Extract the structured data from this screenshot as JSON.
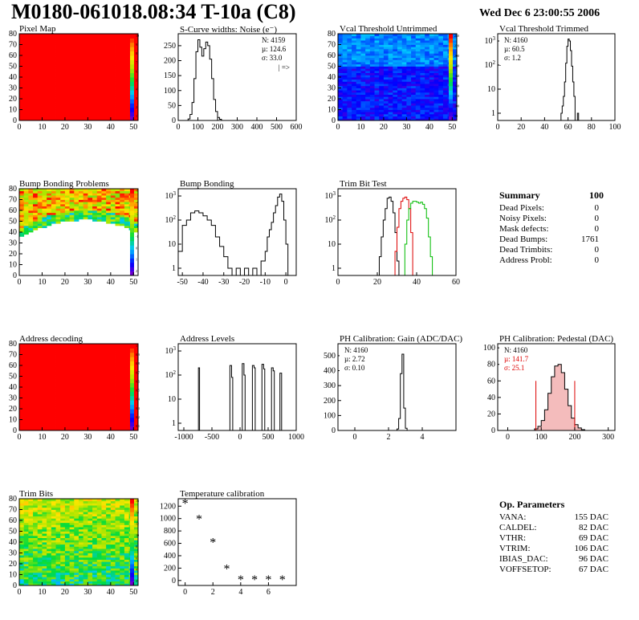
{
  "header": {
    "title": "M0180-061018.08:34 T-10a (C8)",
    "date": "Wed Dec  6 23:00:55 2006"
  },
  "chart_data": [
    {
      "id": "p1",
      "type": "heatmap",
      "title": "Pixel Map",
      "xlim": [
        0,
        52
      ],
      "ylim": [
        0,
        80
      ],
      "xticks": [
        0,
        10,
        20,
        30,
        40,
        50
      ],
      "yticks": [
        0,
        10,
        20,
        30,
        40,
        50,
        60,
        70,
        80
      ],
      "fill": "uniform-max",
      "zticks": [
        "1",
        "2",
        "3",
        "4",
        "5",
        "6",
        "7",
        "8",
        "9",
        "10"
      ]
    },
    {
      "id": "p2",
      "type": "histogram",
      "title": "S-Curve widths: Noise (e⁻)",
      "xlim": [
        0,
        600
      ],
      "ylim": [
        0,
        290
      ],
      "xticks": [
        0,
        100,
        200,
        300,
        400,
        500,
        600
      ],
      "yticks": [
        0,
        50,
        100,
        150,
        200,
        250
      ],
      "stats": [
        "N: 4159",
        "µ: 124.6",
        "σ: 33.0"
      ],
      "note": "| =>",
      "series": [
        {
          "color": "#000",
          "points": [
            [
              40,
              0
            ],
            [
              50,
              5
            ],
            [
              60,
              20
            ],
            [
              70,
              60
            ],
            [
              80,
              140
            ],
            [
              90,
              230
            ],
            [
              100,
              270
            ],
            [
              110,
              245
            ],
            [
              120,
              215
            ],
            [
              130,
              240
            ],
            [
              140,
              262
            ],
            [
              150,
              250
            ],
            [
              160,
              205
            ],
            [
              170,
              140
            ],
            [
              180,
              70
            ],
            [
              190,
              30
            ],
            [
              200,
              10
            ],
            [
              210,
              4
            ],
            [
              220,
              0
            ]
          ]
        }
      ]
    },
    {
      "id": "p3",
      "type": "heatmap",
      "title": "Vcal Threshold Untrimmed",
      "xlim": [
        0,
        52
      ],
      "ylim": [
        0,
        80
      ],
      "xticks": [
        0,
        10,
        20,
        30,
        40,
        50
      ],
      "yticks": [
        0,
        10,
        20,
        30,
        40,
        50,
        60,
        70,
        80
      ],
      "fill": "gradient-blue",
      "zticks": [
        "80",
        "100",
        "120",
        "140",
        "160",
        "180",
        "200",
        "220",
        "240"
      ]
    },
    {
      "id": "p4",
      "type": "histogram",
      "title": "Vcal Threshold Trimmed",
      "xlim": [
        0,
        100
      ],
      "log": true,
      "xticks": [
        0,
        20,
        40,
        60,
        80,
        100
      ],
      "yticks": [
        1,
        10,
        100,
        1000
      ],
      "stats": [
        "N: 4160",
        "µ: 60.5",
        "σ:  1.2"
      ],
      "series": [
        {
          "color": "#000",
          "points": [
            [
              52,
              0
            ],
            [
              54,
              1
            ],
            [
              55,
              2
            ],
            [
              56,
              5
            ],
            [
              57,
              20
            ],
            [
              58,
              120
            ],
            [
              59,
              600
            ],
            [
              60,
              1200
            ],
            [
              61,
              1000
            ],
            [
              62,
              400
            ],
            [
              63,
              90
            ],
            [
              64,
              20
            ],
            [
              65,
              5
            ],
            [
              66,
              0
            ],
            [
              68,
              1
            ],
            [
              69,
              0
            ]
          ]
        }
      ]
    },
    {
      "id": "p5",
      "type": "heatmap",
      "title": "Bump Bonding Problems",
      "xlim": [
        0,
        52
      ],
      "ylim": [
        0,
        80
      ],
      "xticks": [
        0,
        10,
        20,
        30,
        40,
        50
      ],
      "yticks": [
        0,
        10,
        20,
        30,
        40,
        50,
        60,
        70,
        80
      ],
      "fill": "bump",
      "zticks": [
        "2",
        "1",
        "0",
        "-1",
        "-2",
        "-3",
        "-4",
        "-5"
      ]
    },
    {
      "id": "p6",
      "type": "histogram",
      "title": "Bump Bonding",
      "xlim": [
        -52,
        5
      ],
      "log": true,
      "xticks": [
        -50,
        -40,
        -30,
        -20,
        -10,
        0
      ],
      "yticks": [
        1,
        10,
        100,
        1000
      ],
      "series": [
        {
          "color": "#000",
          "points": [
            [
              -52,
              5
            ],
            [
              -50,
              60
            ],
            [
              -48,
              100
            ],
            [
              -46,
              200
            ],
            [
              -44,
              240
            ],
            [
              -42,
              200
            ],
            [
              -40,
              150
            ],
            [
              -38,
              100
            ],
            [
              -36,
              60
            ],
            [
              -34,
              20
            ],
            [
              -32,
              8
            ],
            [
              -30,
              3
            ],
            [
              -28,
              1
            ],
            [
              -26,
              0
            ],
            [
              -24,
              1
            ],
            [
              -22,
              0
            ],
            [
              -20,
              1
            ],
            [
              -18,
              0
            ],
            [
              -16,
              1
            ],
            [
              -14,
              0
            ],
            [
              -12,
              2
            ],
            [
              -10,
              5
            ],
            [
              -9,
              20
            ],
            [
              -8,
              40
            ],
            [
              -7,
              80
            ],
            [
              -6,
              200
            ],
            [
              -5,
              400
            ],
            [
              -4,
              900
            ],
            [
              -3,
              1200
            ],
            [
              -2,
              600
            ],
            [
              -1,
              100
            ],
            [
              0,
              10
            ],
            [
              1,
              0
            ]
          ]
        }
      ]
    },
    {
      "id": "p7",
      "type": "histogram",
      "title": "Trim Bit Test",
      "xlim": [
        0,
        60
      ],
      "log": true,
      "xticks": [
        0,
        20,
        40,
        60
      ],
      "yticks": [
        1,
        10,
        100,
        1000
      ],
      "series": [
        {
          "color": "#000",
          "points": [
            [
              20,
              0
            ],
            [
              21,
              3
            ],
            [
              22,
              20
            ],
            [
              23,
              100
            ],
            [
              24,
              300
            ],
            [
              25,
              800
            ],
            [
              26,
              900
            ],
            [
              27,
              600
            ],
            [
              28,
              200
            ],
            [
              29,
              30
            ],
            [
              30,
              2
            ],
            [
              31,
              0
            ]
          ]
        },
        {
          "color": "#d00",
          "points": [
            [
              28,
              0
            ],
            [
              29,
              5
            ],
            [
              30,
              50
            ],
            [
              31,
              300
            ],
            [
              32,
              600
            ],
            [
              33,
              800
            ],
            [
              34,
              900
            ],
            [
              35,
              700
            ],
            [
              36,
              300
            ],
            [
              37,
              30
            ],
            [
              38,
              0
            ]
          ]
        },
        {
          "color": "#0b0",
          "points": [
            [
              33,
              0
            ],
            [
              34,
              10
            ],
            [
              35,
              100
            ],
            [
              36,
              300
            ],
            [
              37,
              500
            ],
            [
              38,
              600
            ],
            [
              39,
              600
            ],
            [
              40,
              550
            ],
            [
              41,
              500
            ],
            [
              42,
              550
            ],
            [
              43,
              450
            ],
            [
              44,
              300
            ],
            [
              45,
              120
            ],
            [
              46,
              20
            ],
            [
              47,
              3
            ],
            [
              48,
              0
            ]
          ]
        }
      ]
    },
    {
      "id": "p9",
      "type": "heatmap",
      "title": "Address decoding",
      "xlim": [
        0,
        52
      ],
      "ylim": [
        0,
        80
      ],
      "xticks": [
        0,
        10,
        20,
        30,
        40,
        50
      ],
      "yticks": [
        0,
        10,
        20,
        30,
        40,
        50,
        60,
        70,
        80
      ],
      "fill": "uniform-max",
      "zticks": [
        "0.1",
        "0.2",
        "0.3",
        "0.4",
        "0.5",
        "0.6",
        "0.7",
        "0.8",
        "0.9",
        "1"
      ]
    },
    {
      "id": "p10",
      "type": "histogram",
      "title": "Address Levels",
      "xlim": [
        -1100,
        1000
      ],
      "log": true,
      "xticks": [
        -1000,
        -500,
        0,
        500,
        1000
      ],
      "yticks": [
        1,
        10,
        100,
        1000
      ],
      "series": [
        {
          "color": "#000",
          "points": [
            [
              -760,
              0
            ],
            [
              -740,
              200
            ],
            [
              -720,
              0
            ],
            [
              -210,
              0
            ],
            [
              -180,
              250
            ],
            [
              -150,
              80
            ],
            [
              -130,
              0
            ],
            [
              10,
              0
            ],
            [
              40,
              300
            ],
            [
              70,
              100
            ],
            [
              90,
              0
            ],
            [
              190,
              0
            ],
            [
              220,
              250
            ],
            [
              250,
              200
            ],
            [
              270,
              0
            ],
            [
              360,
              0
            ],
            [
              390,
              280
            ],
            [
              420,
              180
            ],
            [
              440,
              0
            ],
            [
              530,
              0
            ],
            [
              560,
              200
            ],
            [
              590,
              150
            ],
            [
              610,
              0
            ],
            [
              680,
              0
            ],
            [
              710,
              120
            ],
            [
              740,
              0
            ]
          ]
        }
      ]
    },
    {
      "id": "p11",
      "type": "histogram",
      "title": "PH Calibration: Gain (ADC/DAC)",
      "xlim": [
        -1,
        6
      ],
      "ylim": [
        0,
        580
      ],
      "xticks": [
        0,
        2,
        4
      ],
      "yticks": [
        0,
        100,
        200,
        300,
        400,
        500
      ],
      "stats": [
        "N: 4160",
        "µ: 2.72",
        "σ: 0.10"
      ],
      "series": [
        {
          "color": "#000",
          "points": [
            [
              2.4,
              0
            ],
            [
              2.5,
              10
            ],
            [
              2.6,
              80
            ],
            [
              2.7,
              380
            ],
            [
              2.8,
              510
            ],
            [
              2.9,
              150
            ],
            [
              3.0,
              15
            ],
            [
              3.1,
              0
            ]
          ]
        }
      ]
    },
    {
      "id": "p12",
      "type": "histogram",
      "title": "PH Calibration: Pedestal (DAC)",
      "xlim": [
        -30,
        320
      ],
      "ylim": [
        0,
        105
      ],
      "xticks": [
        0,
        100,
        200,
        300
      ],
      "yticks": [
        0,
        20,
        40,
        60,
        80,
        100
      ],
      "stats": [
        "N: 4160",
        "µ: 141.7",
        "σ: 25.1"
      ],
      "series": [
        {
          "color": "#000",
          "points": [
            [
              70,
              0
            ],
            [
              80,
              2
            ],
            [
              90,
              5
            ],
            [
              100,
              12
            ],
            [
              110,
              25
            ],
            [
              120,
              45
            ],
            [
              130,
              65
            ],
            [
              140,
              78
            ],
            [
              150,
              80
            ],
            [
              160,
              70
            ],
            [
              170,
              50
            ],
            [
              180,
              30
            ],
            [
              190,
              15
            ],
            [
              200,
              7
            ],
            [
              210,
              3
            ],
            [
              220,
              1
            ],
            [
              230,
              0
            ]
          ]
        }
      ]
    },
    {
      "id": "p13",
      "type": "heatmap",
      "title": "Trim Bits",
      "xlim": [
        0,
        52
      ],
      "ylim": [
        0,
        80
      ],
      "xticks": [
        0,
        10,
        20,
        30,
        40,
        50
      ],
      "yticks": [
        0,
        10,
        20,
        30,
        40,
        50,
        60,
        70,
        80
      ],
      "fill": "trim",
      "zticks": [
        "2",
        "4",
        "6",
        "8",
        "10",
        "12",
        "14",
        "16"
      ]
    },
    {
      "id": "p14",
      "type": "scatter",
      "title": "Temperature calibration",
      "xlim": [
        -0.5,
        8
      ],
      "ylim": [
        -80,
        1320
      ],
      "xticks": [
        0,
        2,
        4,
        6
      ],
      "yticks": [
        0,
        200,
        400,
        600,
        800,
        1000,
        1200
      ],
      "points": [
        [
          0,
          1230
        ],
        [
          1,
          975
        ],
        [
          2,
          600
        ],
        [
          3,
          170
        ],
        [
          4,
          0
        ],
        [
          5,
          0
        ],
        [
          6,
          0
        ],
        [
          7,
          0
        ]
      ]
    }
  ],
  "summary": {
    "title": "Summary",
    "total": "100",
    "rows": [
      {
        "label": "Dead Pixels:",
        "value": "0"
      },
      {
        "label": "Noisy Pixels:",
        "value": "0"
      },
      {
        "label": "Mask defects:",
        "value": "0"
      },
      {
        "label": "Dead Bumps:",
        "value": "1761"
      },
      {
        "label": "Dead Trimbits:",
        "value": "0"
      },
      {
        "label": "Address Probl:",
        "value": "0"
      }
    ]
  },
  "op_params": {
    "title": "Op. Parameters",
    "rows": [
      {
        "label": "VANA:",
        "value": "155 DAC"
      },
      {
        "label": "CALDEL:",
        "value": "82 DAC"
      },
      {
        "label": "VTHR:",
        "value": "69 DAC"
      },
      {
        "label": "VTRIM:",
        "value": "106 DAC"
      },
      {
        "label": "IBIAS_DAC:",
        "value": "96 DAC"
      },
      {
        "label": "VOFFSETOP:",
        "value": "67 DAC"
      }
    ]
  }
}
